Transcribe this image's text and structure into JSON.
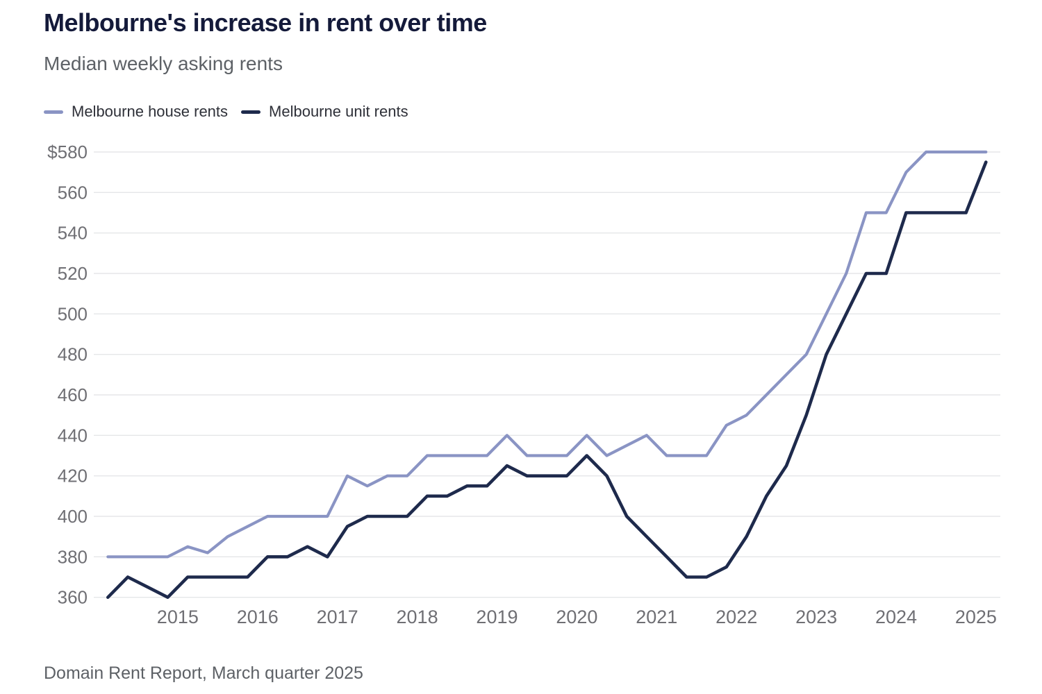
{
  "header": {
    "title": "Melbourne's increase in rent over time",
    "subtitle": "Median weekly asking rents"
  },
  "footer": {
    "source": "Domain Rent Report, March quarter 2025"
  },
  "colors": {
    "house_line": "#8A94C4",
    "unit_line": "#1E2A4C",
    "gridline": "#e5e6e8",
    "tick_label": "#6f6f74",
    "title": "#141a3a",
    "subtitle": "#5d6166"
  },
  "chart_data": {
    "type": "line",
    "title": "Melbourne's increase in rent over time",
    "subtitle": "Median weekly asking rents",
    "source": "Domain Rent Report, March quarter 2025",
    "x": [
      "2014 Q1",
      "2014 Q2",
      "2014 Q3",
      "2014 Q4",
      "2015 Q1",
      "2015 Q2",
      "2015 Q3",
      "2015 Q4",
      "2016 Q1",
      "2016 Q2",
      "2016 Q3",
      "2016 Q4",
      "2017 Q1",
      "2017 Q2",
      "2017 Q3",
      "2017 Q4",
      "2018 Q1",
      "2018 Q2",
      "2018 Q3",
      "2018 Q4",
      "2019 Q1",
      "2019 Q2",
      "2019 Q3",
      "2019 Q4",
      "2020 Q1",
      "2020 Q2",
      "2020 Q3",
      "2020 Q4",
      "2021 Q1",
      "2021 Q2",
      "2021 Q3",
      "2021 Q4",
      "2022 Q1",
      "2022 Q2",
      "2022 Q3",
      "2022 Q4",
      "2023 Q1",
      "2023 Q2",
      "2023 Q3",
      "2023 Q4",
      "2024 Q1",
      "2024 Q2",
      "2024 Q3",
      "2024 Q4",
      "2025 Q1"
    ],
    "series": [
      {
        "name": "Melbourne house rents",
        "color": "#8A94C4",
        "values": [
          380,
          380,
          380,
          380,
          385,
          382,
          390,
          395,
          400,
          400,
          400,
          400,
          420,
          415,
          420,
          420,
          430,
          430,
          430,
          430,
          440,
          430,
          430,
          430,
          440,
          430,
          435,
          440,
          430,
          430,
          430,
          445,
          450,
          460,
          470,
          480,
          500,
          520,
          550,
          550,
          570,
          580,
          580,
          580,
          580
        ]
      },
      {
        "name": "Melbourne unit rents",
        "color": "#1E2A4C",
        "values": [
          360,
          370,
          365,
          360,
          370,
          370,
          370,
          370,
          380,
          380,
          385,
          380,
          395,
          400,
          400,
          400,
          410,
          410,
          415,
          415,
          425,
          420,
          420,
          420,
          430,
          420,
          400,
          390,
          380,
          370,
          370,
          375,
          390,
          410,
          425,
          450,
          480,
          500,
          520,
          520,
          550,
          550,
          550,
          550,
          575
        ]
      }
    ],
    "ylabel": "",
    "xlabel": "",
    "ylim": [
      360,
      580
    ],
    "ytick_step": 20,
    "ytick_labels": [
      "$580",
      "560",
      "540",
      "520",
      "500",
      "480",
      "460",
      "440",
      "420",
      "400",
      "380",
      "360"
    ],
    "xtick_labels": [
      "2015",
      "2016",
      "2017",
      "2018",
      "2019",
      "2020",
      "2021",
      "2022",
      "2023",
      "2024",
      "2025"
    ],
    "grid": "horizontal",
    "legend_position": "top-left"
  }
}
